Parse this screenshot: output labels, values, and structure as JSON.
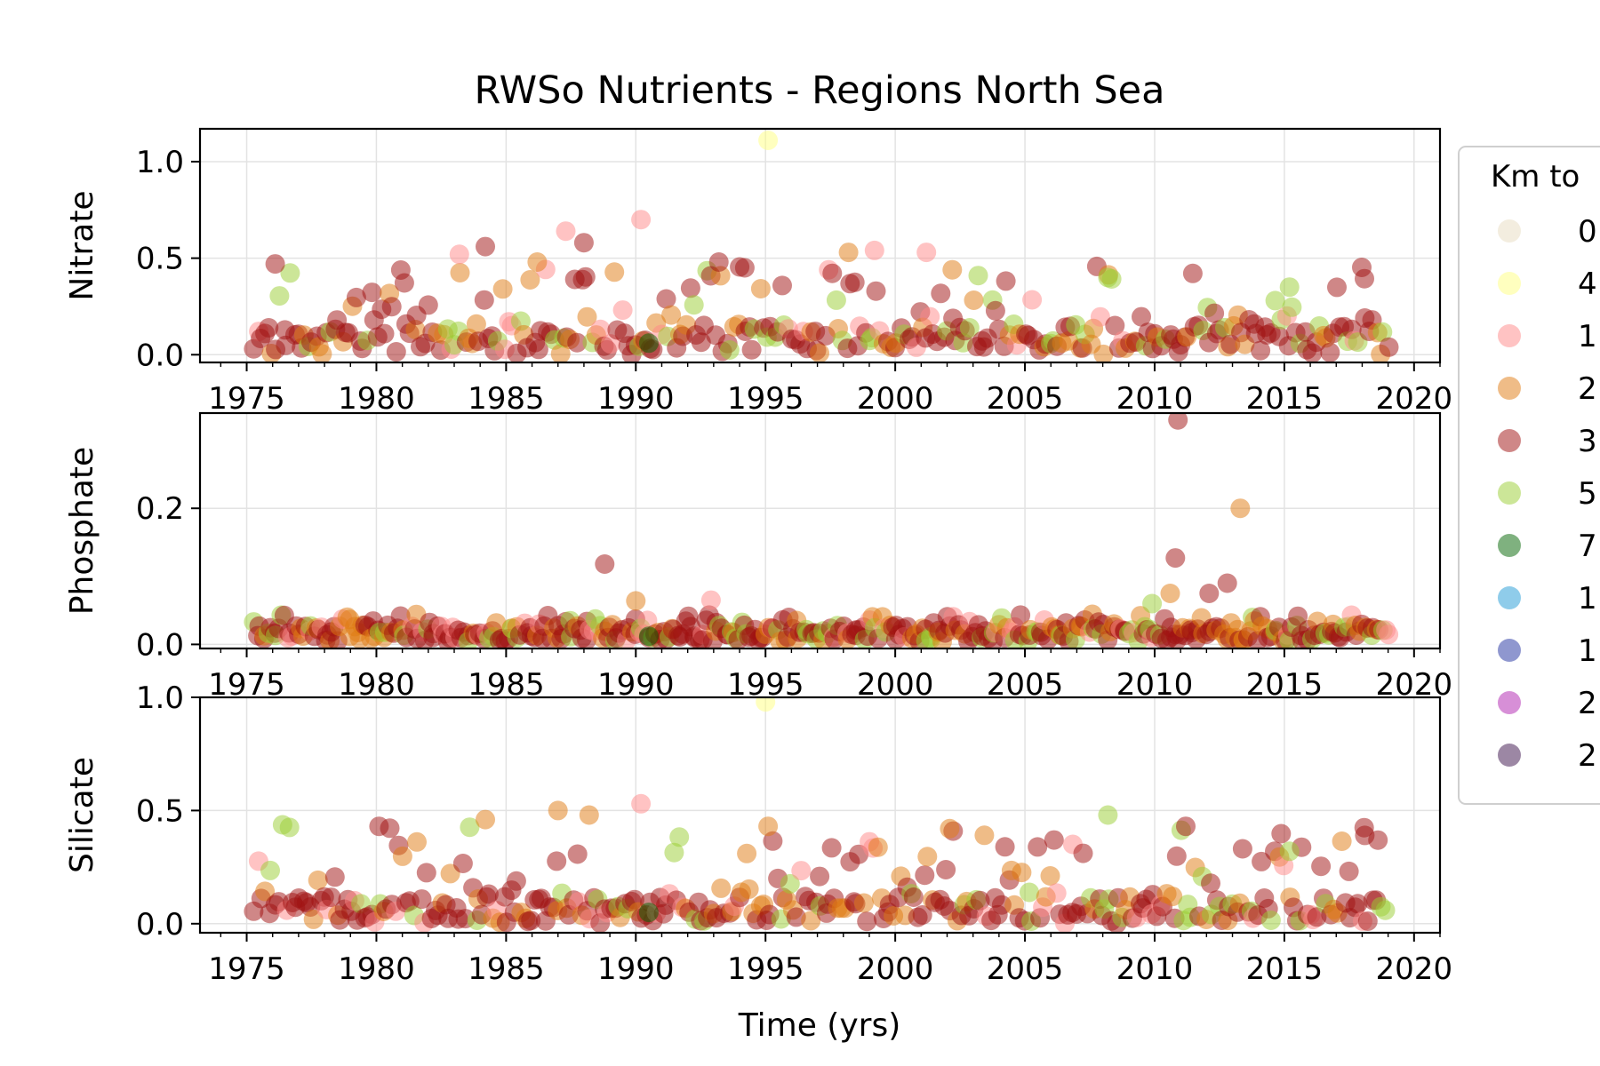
{
  "chart_data": {
    "type": "scatter",
    "title": "RWSo Nutrients - Regions North Sea",
    "xlabel": "Time (yrs)",
    "xlim": [
      1973.2,
      2021.0
    ],
    "xticks": [
      1975,
      1980,
      1985,
      1990,
      1995,
      2000,
      2005,
      2010,
      2015,
      2020
    ],
    "xtick_labels": [
      "1975",
      "1980",
      "1985",
      "1990",
      "1995",
      "2000",
      "2005",
      "2010",
      "2015",
      "2020"
    ],
    "grid": true,
    "marker_alpha": 0.5,
    "legend": {
      "title": "Km to",
      "placement": "right, outside (clipped)",
      "entries": [
        {
          "label": "0",
          "color": "#e8dcc0"
        },
        {
          "label": "4",
          "color": "#ffff80"
        },
        {
          "label": "1",
          "color": "#ff8888"
        },
        {
          "label": "2",
          "color": "#e07a10"
        },
        {
          "label": "3",
          "color": "#a01010"
        },
        {
          "label": "5",
          "color": "#9acd32"
        },
        {
          "label": "7",
          "color": "#006400"
        },
        {
          "label": "1",
          "color": "#1f9ad6"
        },
        {
          "label": "1",
          "color": "#1f2fa0"
        },
        {
          "label": "2",
          "color": "#b020b0"
        },
        {
          "label": "2",
          "color": "#3a0f4a"
        }
      ]
    },
    "panels": [
      {
        "name": "nitrate",
        "ylabel": "Nitrate",
        "ylim": [
          -0.04,
          1.17
        ],
        "yticks": [
          0.0,
          0.5,
          1.0
        ],
        "ytick_labels": [
          "0.0",
          "0.5",
          "1.0"
        ],
        "seed": 11,
        "density": 1.0,
        "base": {
          "lo": 0.02,
          "hi": 0.16
        },
        "spread": {
          "lo": 0.0,
          "hi": 0.46
        },
        "points": [
          {
            "x": 1995.1,
            "y": 1.11,
            "series": 1
          },
          {
            "x": 1990.2,
            "y": 0.7,
            "series": 2
          },
          {
            "x": 1987.3,
            "y": 0.64,
            "series": 2
          },
          {
            "x": 1984.2,
            "y": 0.56,
            "series": 4
          },
          {
            "x": 1988.0,
            "y": 0.58,
            "series": 4
          },
          {
            "x": 1998.2,
            "y": 0.53,
            "series": 3
          },
          {
            "x": 1999.2,
            "y": 0.54,
            "series": 2
          },
          {
            "x": 2001.2,
            "y": 0.53,
            "series": 2
          },
          {
            "x": 2002.2,
            "y": 0.44,
            "series": 3
          },
          {
            "x": 1983.2,
            "y": 0.52,
            "series": 2
          },
          {
            "x": 1986.2,
            "y": 0.48,
            "series": 3
          },
          {
            "x": 1976.1,
            "y": 0.47,
            "series": 4
          },
          {
            "x": 1993.2,
            "y": 0.48,
            "series": 4
          },
          {
            "x": 1994.2,
            "y": 0.45,
            "series": 4
          },
          {
            "x": 2003.2,
            "y": 0.41,
            "series": 5
          },
          {
            "x": 2008.2,
            "y": 0.4,
            "series": 5
          },
          {
            "x": 2015.2,
            "y": 0.35,
            "series": 5
          },
          {
            "x": 1990.5,
            "y": 0.06,
            "series": 6
          },
          {
            "x": 2018.1,
            "y": 0.19,
            "series": 4
          }
        ]
      },
      {
        "name": "phosphate",
        "ylabel": "Phosphate",
        "ylim": [
          -0.006,
          0.34
        ],
        "yticks": [
          0.0,
          0.2
        ],
        "ytick_labels": [
          "0.0",
          "0.2"
        ],
        "seed": 29,
        "density": 1.35,
        "base": {
          "lo": 0.004,
          "hi": 0.028
        },
        "spread": {
          "lo": 0.008,
          "hi": 0.045
        },
        "points": [
          {
            "x": 2010.9,
            "y": 0.33,
            "series": 4
          },
          {
            "x": 2013.3,
            "y": 0.2,
            "series": 3
          },
          {
            "x": 2010.8,
            "y": 0.127,
            "series": 4
          },
          {
            "x": 1988.8,
            "y": 0.118,
            "series": 4
          },
          {
            "x": 2012.8,
            "y": 0.09,
            "series": 4
          },
          {
            "x": 2012.1,
            "y": 0.075,
            "series": 4
          },
          {
            "x": 2010.6,
            "y": 0.075,
            "series": 3
          },
          {
            "x": 2009.9,
            "y": 0.06,
            "series": 5
          },
          {
            "x": 1990.5,
            "y": 0.012,
            "series": 6
          },
          {
            "x": 1992.9,
            "y": 0.065,
            "series": 2
          },
          {
            "x": 1990.0,
            "y": 0.064,
            "series": 3
          }
        ]
      },
      {
        "name": "silicate",
        "ylabel": "Silicate",
        "ylim": [
          -0.04,
          1.0
        ],
        "yticks": [
          0.0,
          0.5,
          1.0
        ],
        "ytick_labels": [
          "0.0",
          "0.5",
          "1.0"
        ],
        "seed": 47,
        "density": 1.05,
        "base": {
          "lo": 0.01,
          "hi": 0.12
        },
        "spread": {
          "lo": 0.0,
          "hi": 0.44
        },
        "points": [
          {
            "x": 1995.0,
            "y": 0.98,
            "series": 1
          },
          {
            "x": 1990.2,
            "y": 0.53,
            "series": 2
          },
          {
            "x": 1987.0,
            "y": 0.5,
            "series": 3
          },
          {
            "x": 1988.2,
            "y": 0.48,
            "series": 3
          },
          {
            "x": 1984.2,
            "y": 0.46,
            "series": 3
          },
          {
            "x": 2008.2,
            "y": 0.48,
            "series": 5
          },
          {
            "x": 1995.1,
            "y": 0.43,
            "series": 3
          },
          {
            "x": 2002.1,
            "y": 0.42,
            "series": 3
          },
          {
            "x": 2011.2,
            "y": 0.43,
            "series": 4
          },
          {
            "x": 1980.1,
            "y": 0.43,
            "series": 4
          },
          {
            "x": 2018.1,
            "y": 0.39,
            "series": 4
          },
          {
            "x": 1990.5,
            "y": 0.05,
            "series": 6
          },
          {
            "x": 2015.2,
            "y": 0.32,
            "series": 5
          }
        ]
      }
    ],
    "background_series_mix": [
      {
        "series": 4,
        "weight": 0.56
      },
      {
        "series": 3,
        "weight": 0.2
      },
      {
        "series": 2,
        "weight": 0.1
      },
      {
        "series": 5,
        "weight": 0.14
      }
    ]
  }
}
